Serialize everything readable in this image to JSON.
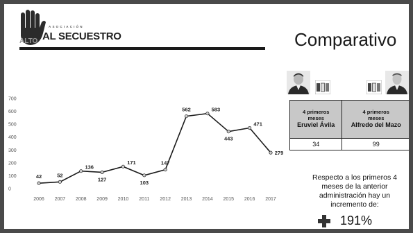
{
  "logo": {
    "small_text": "ASOCIACIÓN",
    "alto_text": "ALTO",
    "main_text": "AL SECUESTRO"
  },
  "title": "Comparativo",
  "chart_data": {
    "type": "line",
    "title": "",
    "xlabel": "",
    "ylabel": "",
    "categories": [
      "2006",
      "2007",
      "2008",
      "2009",
      "2010",
      "2011",
      "2012",
      "2013",
      "2014",
      "2015",
      "2016",
      "2017"
    ],
    "values": [
      42,
      52,
      136,
      127,
      171,
      103,
      147,
      562,
      583,
      443,
      471,
      279
    ],
    "ylim": [
      0,
      700
    ],
    "yticks": [
      0,
      100,
      200,
      300,
      400,
      500,
      600,
      700
    ],
    "grid": false,
    "line_color": "#1a1a1a",
    "marker_color": "#cccccc"
  },
  "table": {
    "headers": [
      {
        "line1": "4 primeros",
        "line2": "meses",
        "name": "Eruviel Ávila"
      },
      {
        "line1": "4 primeros",
        "line2": "meses",
        "name": "Alfredo del Mazo"
      }
    ],
    "values": [
      "34",
      "99"
    ]
  },
  "note": "Respecto a los primeros 4 meses de la anterior administración hay un incremento de:",
  "increase": {
    "icon": "plus-icon",
    "value": "191%"
  }
}
